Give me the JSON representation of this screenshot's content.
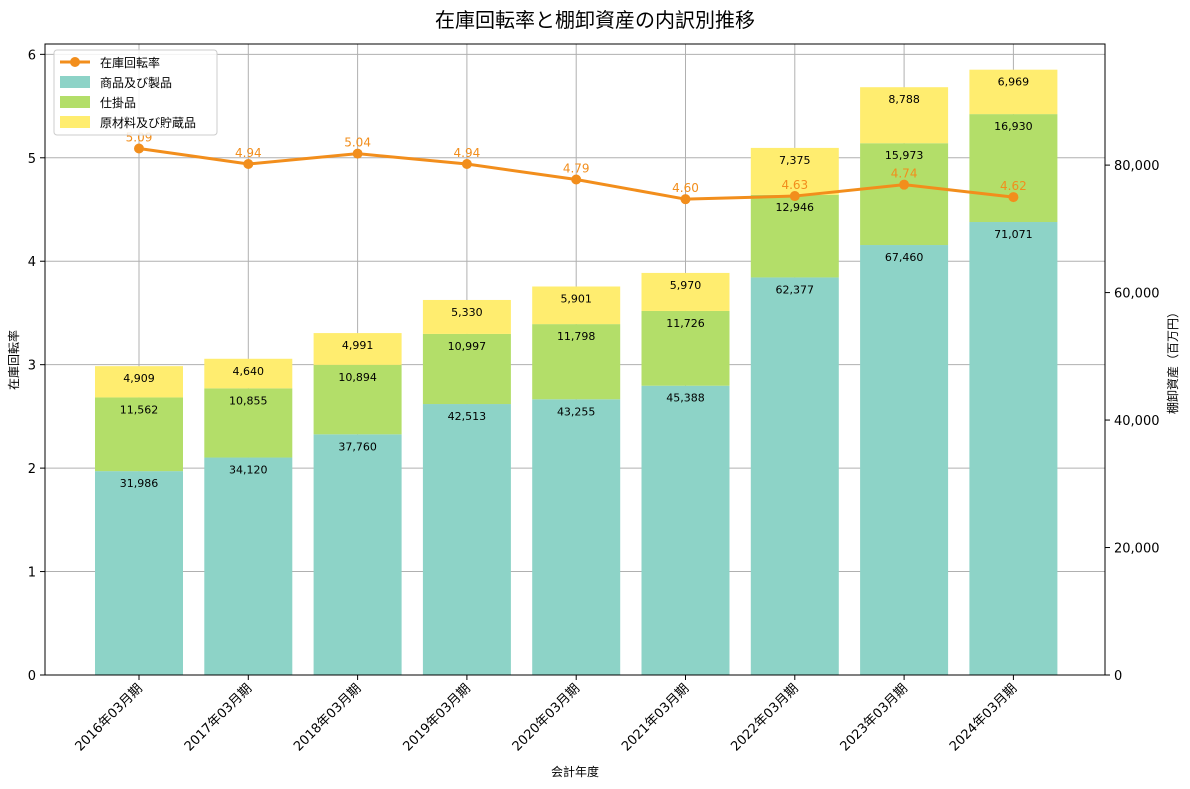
{
  "chart_data": {
    "type": "bar",
    "title": "在庫回転率と棚卸資産の内訳別推移",
    "xlabel": "会計年度",
    "ylabel_left": "在庫回転率",
    "ylabel_right": "棚卸資産（百万円）",
    "categories": [
      "2016年03月期",
      "2017年03月期",
      "2018年03月期",
      "2019年03月期",
      "2020年03月期",
      "2021年03月期",
      "2022年03月期",
      "2023年03月期",
      "2024年03月期"
    ],
    "ylim_left": [
      0,
      6.1
    ],
    "ylim_right": [
      0,
      99000
    ],
    "left_ticks": [
      "0",
      "1",
      "2",
      "3",
      "4",
      "5",
      "6"
    ],
    "right_ticks": [
      "0",
      "20,000",
      "40,000",
      "60,000",
      "80,000"
    ],
    "grid": true,
    "legend_position": "top-left",
    "stack_series": [
      {
        "name": "商品及び製品",
        "color": "#8dd3c7",
        "values": [
          31986,
          34120,
          37760,
          42513,
          43255,
          45388,
          62377,
          67460,
          71071
        ],
        "labels": [
          "31,986",
          "34,120",
          "37,760",
          "42,513",
          "43,255",
          "45,388",
          "62,377",
          "67,460",
          "71,071"
        ]
      },
      {
        "name": "仕掛品",
        "color": "#b3de69",
        "values": [
          11562,
          10855,
          10894,
          10997,
          11798,
          11726,
          12946,
          15973,
          16930
        ],
        "labels": [
          "11,562",
          "10,855",
          "10,894",
          "10,997",
          "11,798",
          "11,726",
          "12,946",
          "15,973",
          "16,930"
        ]
      },
      {
        "name": "原材料及び貯蔵品",
        "color": "#ffed6f",
        "values": [
          4909,
          4640,
          4991,
          5330,
          5901,
          5970,
          7375,
          8788,
          6969
        ],
        "labels": [
          "4,909",
          "4,640",
          "4,991",
          "5,330",
          "5,901",
          "5,970",
          "7,375",
          "8,788",
          "6,969"
        ]
      }
    ],
    "line_series": {
      "name": "在庫回転率",
      "color": "#f28e1c",
      "values": [
        5.09,
        4.94,
        5.04,
        4.94,
        4.79,
        4.6,
        4.63,
        4.74,
        4.62
      ],
      "labels": [
        "5.09",
        "4.94",
        "5.04",
        "4.94",
        "4.79",
        "4.60",
        "4.63",
        "4.74",
        "4.62"
      ]
    }
  }
}
